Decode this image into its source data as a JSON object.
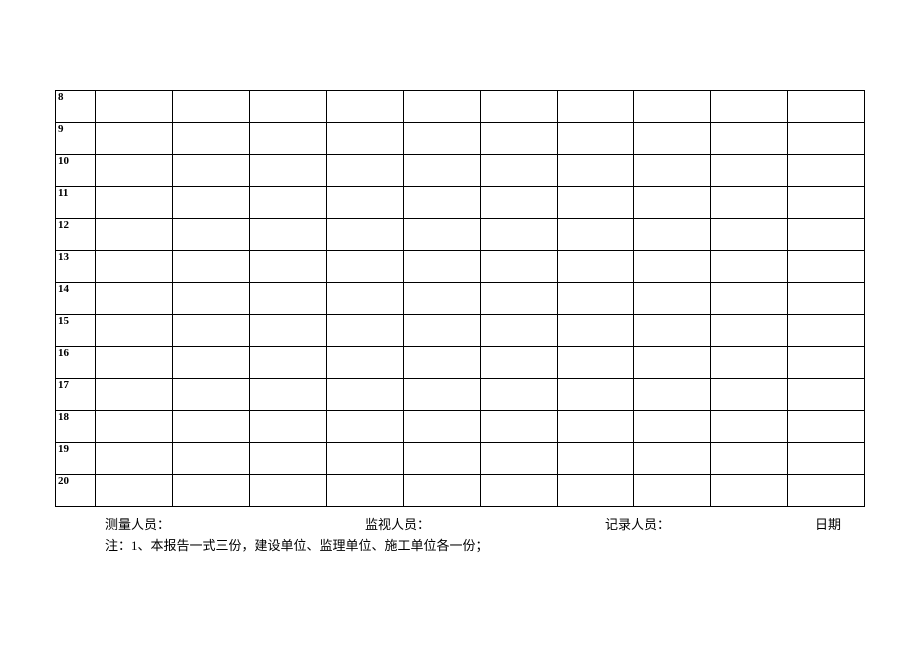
{
  "table": {
    "rows": [
      "8",
      "9",
      "10",
      "11",
      "12",
      "13",
      "14",
      "15",
      "16",
      "17",
      "18",
      "19",
      "20"
    ],
    "column_count": 11,
    "border_color": "#000000",
    "text_color": "#000000",
    "background_color": "#ffffff",
    "row_number_fontsize": 11,
    "row_number_fontweight": "bold"
  },
  "footer": {
    "labels": {
      "measurer": "测量人员：",
      "supervisor": "监视人员：",
      "recorder": "记录人员：",
      "date": "日期"
    },
    "note": "注：1、本报告一式三份，建设单位、监理单位、施工单位各一份；",
    "fontsize": 13,
    "text_color": "#000000"
  }
}
